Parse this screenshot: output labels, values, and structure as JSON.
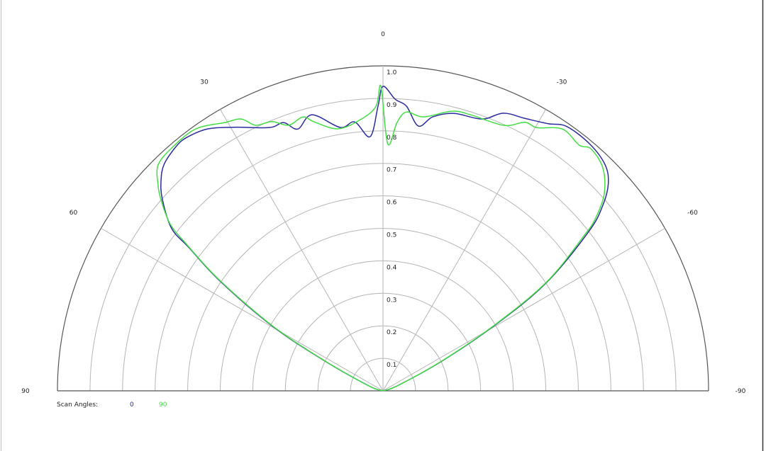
{
  "chart_data": {
    "type": "polar",
    "title": "",
    "angle_range": [
      -90,
      90
    ],
    "angle_zero": "top",
    "angle_direction": "positive-left",
    "angle_ticks": [
      0,
      30,
      60,
      90,
      -30,
      -60,
      -90
    ],
    "angle_tick_labels": [
      "0",
      "30",
      "60",
      "90",
      "-30",
      "-60",
      "-90"
    ],
    "radial_range": [
      0,
      1.0
    ],
    "radial_ticks": [
      0.1,
      0.2,
      0.3,
      0.4,
      0.5,
      0.6,
      0.7,
      0.8,
      0.9,
      1.0
    ],
    "radial_tick_labels": [
      "0.1",
      "0.2",
      "0.3",
      "0.4",
      "0.5",
      "0.6",
      "0.7",
      "0.8",
      "0.9",
      "1.0"
    ],
    "grid": true,
    "legend": {
      "title": "Scan Angles:",
      "placement": "bottom-left"
    },
    "series": [
      {
        "name": "0",
        "color": "#2b2b9e",
        "points": [
          [
            90,
            0
          ],
          [
            70.7,
            0.046
          ],
          [
            62.6,
            0.213
          ],
          [
            59.6,
            0.396
          ],
          [
            56.0,
            0.604
          ],
          [
            53.5,
            0.743
          ],
          [
            52.4,
            0.82
          ],
          [
            49.0,
            0.898
          ],
          [
            46.5,
            0.94
          ],
          [
            43.9,
            0.969
          ],
          [
            40.0,
            0.985
          ],
          [
            37.5,
            0.985
          ],
          [
            33.7,
            0.969
          ],
          [
            29.4,
            0.931
          ],
          [
            23.3,
            0.882
          ],
          [
            20.3,
            0.88
          ],
          [
            18.0,
            0.847
          ],
          [
            14.4,
            0.877
          ],
          [
            9.2,
            0.821
          ],
          [
            6.0,
            0.832
          ],
          [
            2.9,
            0.783
          ],
          [
            1.0,
            0.876
          ],
          [
            0,
            0.937
          ],
          [
            -2.4,
            0.898
          ],
          [
            -4.7,
            0.879
          ],
          [
            -7.6,
            0.822
          ],
          [
            -10.3,
            0.857
          ],
          [
            -14.3,
            0.881
          ],
          [
            -20.0,
            0.89
          ],
          [
            -23.4,
            0.931
          ],
          [
            -27.5,
            0.945
          ],
          [
            -31.7,
            0.966
          ],
          [
            -34.7,
            0.99
          ],
          [
            -39.9,
            0.99
          ],
          [
            -44.5,
            0.974
          ],
          [
            -47.4,
            0.94
          ],
          [
            -49.8,
            0.884
          ],
          [
            -52.2,
            0.8
          ],
          [
            -56.5,
            0.6
          ],
          [
            -59.6,
            0.396
          ],
          [
            -63.2,
            0.203
          ],
          [
            -70.7,
            0.046
          ],
          [
            -90,
            0
          ]
        ]
      },
      {
        "name": "90",
        "color": "#44dd44",
        "points": [
          [
            90,
            0
          ],
          [
            70.7,
            0.048
          ],
          [
            62.4,
            0.215
          ],
          [
            59.4,
            0.4
          ],
          [
            55.8,
            0.61
          ],
          [
            53.2,
            0.755
          ],
          [
            51.9,
            0.83
          ],
          [
            49.3,
            0.899
          ],
          [
            47.4,
            0.939
          ],
          [
            44.8,
            0.98
          ],
          [
            40.7,
            0.99
          ],
          [
            35.5,
            0.99
          ],
          [
            30.5,
            0.958
          ],
          [
            27.5,
            0.943
          ],
          [
            25.6,
            0.906
          ],
          [
            22.4,
            0.896
          ],
          [
            19.5,
            0.867
          ],
          [
            16.3,
            0.878
          ],
          [
            14.3,
            0.854
          ],
          [
            9.7,
            0.818
          ],
          [
            4.5,
            0.839
          ],
          [
            1.4,
            0.876
          ],
          [
            0.4,
            0.937
          ],
          [
            -1.1,
            0.76
          ],
          [
            -3.0,
            0.827
          ],
          [
            -4.8,
            0.861
          ],
          [
            -8.4,
            0.852
          ],
          [
            -13.8,
            0.886
          ],
          [
            -17.5,
            0.891
          ],
          [
            -24.4,
            0.897
          ],
          [
            -27.8,
            0.934
          ],
          [
            -30.3,
            0.938
          ],
          [
            -34.4,
            0.976
          ],
          [
            -38.6,
            0.967
          ],
          [
            -40.6,
            0.981
          ],
          [
            -44.5,
            0.963
          ],
          [
            -48.2,
            0.912
          ],
          [
            -50.8,
            0.844
          ],
          [
            -52.3,
            0.78
          ],
          [
            -56.3,
            0.605
          ],
          [
            -59.4,
            0.4
          ],
          [
            -63.0,
            0.205
          ],
          [
            -70.7,
            0.048
          ],
          [
            -90,
            0
          ]
        ]
      }
    ]
  }
}
